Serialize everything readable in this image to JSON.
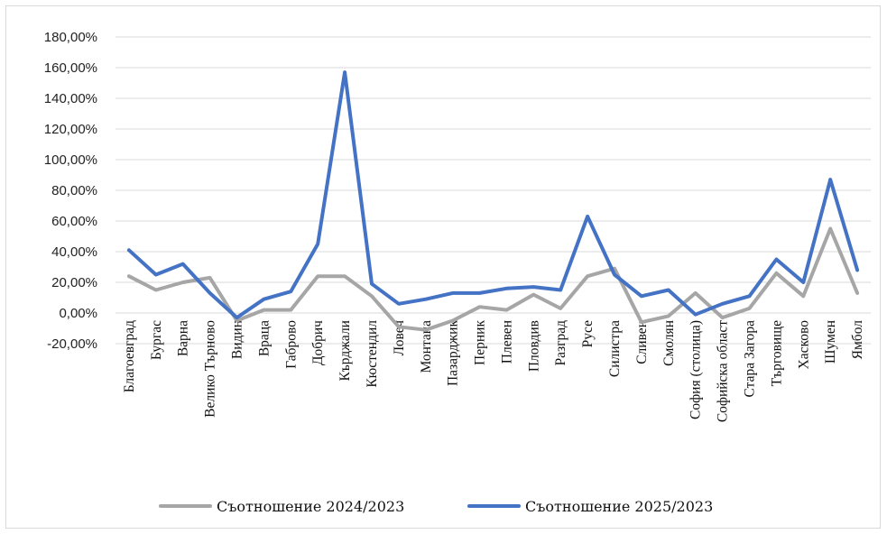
{
  "chart_data": {
    "type": "line",
    "title": "",
    "xlabel": "",
    "ylabel": "",
    "ylim": [
      -20,
      180
    ],
    "y_ticks": [
      "-20,00%",
      "0,00%",
      "20,00%",
      "40,00%",
      "60,00%",
      "80,00%",
      "100,00%",
      "120,00%",
      "140,00%",
      "160,00%",
      "180,00%"
    ],
    "grid": "horizontal",
    "legend_position": "bottom",
    "categories": [
      "Благоевград",
      "Бургас",
      "Варна",
      "Велико Търново",
      "Видин",
      "Враца",
      "Габрово",
      "Добрич",
      "Кърджали",
      "Кюстендил",
      "Ловеч",
      "Монтана",
      "Пазарджик",
      "Перник",
      "Плевен",
      "Пловдив",
      "Разград",
      "Русе",
      "Силистра",
      "Сливен",
      "Смолян",
      "София (столица)",
      "Софийска област",
      "Стара Загора",
      "Търговище",
      "Хасково",
      "Шумен",
      "Ямбол"
    ],
    "series": [
      {
        "name": "Съотношение 2024/2023",
        "color": "#a6a6a6",
        "values": [
          24,
          15,
          20,
          23,
          -5,
          2,
          2,
          24,
          24,
          11,
          -9,
          -11,
          -5,
          4,
          2,
          12,
          3,
          24,
          29,
          -6,
          -2,
          13,
          -3,
          3,
          26,
          11,
          55,
          13
        ]
      },
      {
        "name": "Съотношение 2025/2023",
        "color": "#4472c4",
        "values": [
          41,
          25,
          32,
          13,
          -3,
          9,
          14,
          45,
          157,
          19,
          6,
          9,
          13,
          13,
          16,
          17,
          15,
          63,
          25,
          11,
          15,
          -1,
          6,
          11,
          35,
          20,
          87,
          28
        ]
      }
    ]
  }
}
